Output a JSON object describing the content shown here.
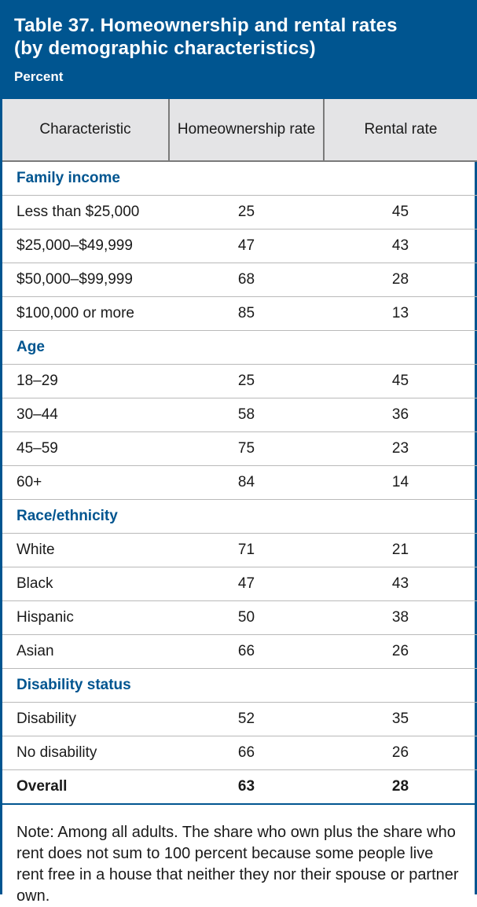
{
  "header": {
    "title_line1": "Table 37. Homeownership and rental rates",
    "title_line2": "(by demographic characteristics)",
    "subtitle": "Percent"
  },
  "columns": [
    "Characteristic",
    "Homeownership rate",
    "Rental rate"
  ],
  "groups": [
    {
      "name": "Family income",
      "rows": [
        {
          "label": "Less than $25,000",
          "home": "25",
          "rent": "45"
        },
        {
          "label": "$25,000–$49,999",
          "home": "47",
          "rent": "43"
        },
        {
          "label": "$50,000–$99,999",
          "home": "68",
          "rent": "28"
        },
        {
          "label": "$100,000 or more",
          "home": "85",
          "rent": "13"
        }
      ]
    },
    {
      "name": "Age",
      "rows": [
        {
          "label": "18–29",
          "home": "25",
          "rent": "45"
        },
        {
          "label": "30–44",
          "home": "58",
          "rent": "36"
        },
        {
          "label": "45–59",
          "home": "75",
          "rent": "23"
        },
        {
          "label": "60+",
          "home": "84",
          "rent": "14"
        }
      ]
    },
    {
      "name": "Race/ethnicity",
      "rows": [
        {
          "label": "White",
          "home": "71",
          "rent": "21"
        },
        {
          "label": "Black",
          "home": "47",
          "rent": "43"
        },
        {
          "label": "Hispanic",
          "home": "50",
          "rent": "38"
        },
        {
          "label": "Asian",
          "home": "66",
          "rent": "26"
        }
      ]
    },
    {
      "name": "Disability status",
      "rows": [
        {
          "label": "Disability",
          "home": "52",
          "rent": "35"
        },
        {
          "label": "No disability",
          "home": "66",
          "rent": "26"
        }
      ]
    }
  ],
  "overall": {
    "label": "Overall",
    "home": "63",
    "rent": "28"
  },
  "note": "Note: Among all adults. The share who own plus the share who rent does not sum to 100 percent because some people live rent free in a house that neither they nor their spouse or partner own.",
  "colors": {
    "brand_blue": "#005590",
    "header_gray": "#e4e4e6"
  }
}
